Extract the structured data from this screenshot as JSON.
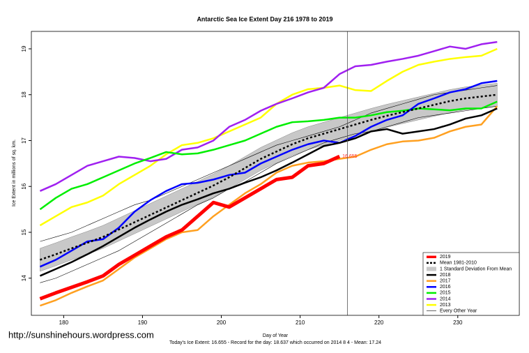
{
  "chart_data": {
    "type": "line",
    "title": "Antarctic Sea Ice Extent Day 216 1978 to 2019",
    "ylabel": "Ice Extent in millions of sq. km.",
    "xlabel": "Day of Year",
    "footer": "Today's Ice Extent: 16.655  - Record for the day: 18.637 which occurred on 2014 8 4  - Mean: 17.24",
    "watermark": "http://sunshinehours.wordpress.com",
    "annotation": "16.655",
    "vline": 216,
    "xlim": [
      175.9,
      237.8
    ],
    "ylim": [
      13.19,
      19.38
    ],
    "xticks": [
      180,
      190,
      200,
      210,
      220,
      230
    ],
    "yticks": [
      14,
      15,
      16,
      17,
      18,
      19
    ],
    "legend": "bottom-right",
    "x": [
      177,
      179,
      181,
      183,
      185,
      187,
      189,
      191,
      193,
      195,
      197,
      199,
      201,
      203,
      205,
      207,
      209,
      211,
      213,
      215,
      217,
      219,
      221,
      223,
      225,
      227,
      229,
      231,
      233,
      235
    ],
    "std_band": {
      "name": "1 Standard Deviation From Mean",
      "color": "#c8c8c8",
      "upper": [
        14.65,
        14.77,
        14.9,
        15.02,
        15.15,
        15.31,
        15.47,
        15.63,
        15.79,
        15.95,
        16.11,
        16.27,
        16.45,
        16.65,
        16.85,
        17.01,
        17.17,
        17.3,
        17.4,
        17.5,
        17.6,
        17.7,
        17.79,
        17.87,
        17.95,
        18.03,
        18.11,
        18.17,
        18.21,
        18.25
      ],
      "lower": [
        14.15,
        14.27,
        14.4,
        14.52,
        14.65,
        14.81,
        14.97,
        15.13,
        15.29,
        15.45,
        15.61,
        15.77,
        15.95,
        16.15,
        16.35,
        16.51,
        16.67,
        16.8,
        16.9,
        17.0,
        17.1,
        17.2,
        17.29,
        17.37,
        17.45,
        17.53,
        17.61,
        17.67,
        17.71,
        17.75
      ]
    },
    "other_years": {
      "name": "Every Other Year",
      "color": "#000000",
      "lines": [
        [
          14.8,
          14.9,
          15.0,
          15.15,
          15.3,
          15.45,
          15.6,
          15.7,
          15.85,
          16.0,
          16.15,
          16.3,
          16.45,
          16.6,
          16.75,
          16.9,
          17.0,
          17.1,
          17.2,
          17.3,
          17.45,
          17.6,
          17.7,
          17.8,
          17.9,
          18.0,
          18.05,
          18.1,
          18.15,
          18.2
        ],
        [
          13.9,
          14.0,
          14.15,
          14.3,
          14.45,
          14.6,
          14.8,
          15.0,
          15.2,
          15.4,
          15.6,
          15.75,
          15.95,
          16.1,
          16.3,
          16.5,
          16.65,
          16.8,
          16.95,
          17.05,
          17.15,
          17.2,
          17.3,
          17.4,
          17.5,
          17.55,
          17.6,
          17.65,
          17.7,
          17.75
        ]
      ]
    },
    "series": [
      {
        "name": "2019",
        "color": "#ff0000",
        "width": 5,
        "values": [
          13.55,
          13.68,
          13.8,
          13.92,
          14.05,
          14.3,
          14.5,
          14.7,
          14.9,
          15.05,
          15.35,
          15.65,
          15.55,
          15.75,
          15.95,
          16.15,
          16.2,
          16.45,
          16.5,
          16.655,
          null,
          null,
          null,
          null,
          null,
          null,
          null,
          null,
          null,
          null
        ]
      },
      {
        "name": "Mean 1981-2010",
        "color": "#000000",
        "width": 2.5,
        "dashed": true,
        "values": [
          14.4,
          14.52,
          14.65,
          14.77,
          14.9,
          15.06,
          15.22,
          15.38,
          15.54,
          15.7,
          15.86,
          16.02,
          16.2,
          16.4,
          16.6,
          16.76,
          16.92,
          17.05,
          17.15,
          17.25,
          17.35,
          17.45,
          17.54,
          17.62,
          17.7,
          17.78,
          17.86,
          17.92,
          17.96,
          18.0
        ]
      },
      {
        "name": "2018",
        "color": "#000000",
        "width": 2.5,
        "values": [
          14.05,
          14.2,
          14.35,
          14.52,
          14.7,
          14.9,
          15.1,
          15.28,
          15.45,
          15.6,
          15.72,
          15.85,
          15.95,
          16.08,
          16.2,
          16.35,
          16.52,
          16.7,
          16.88,
          16.95,
          17.05,
          17.2,
          17.25,
          17.15,
          17.2,
          17.25,
          17.35,
          17.48,
          17.55,
          17.7
        ]
      },
      {
        "name": "2017",
        "color": "#ffa020",
        "width": 2.5,
        "values": [
          13.4,
          13.52,
          13.68,
          13.82,
          13.95,
          14.2,
          14.45,
          14.65,
          14.85,
          15.0,
          15.05,
          15.35,
          15.6,
          15.85,
          16.05,
          16.3,
          16.45,
          16.52,
          16.55,
          16.6,
          16.65,
          16.8,
          16.92,
          16.98,
          17.0,
          17.06,
          17.2,
          17.3,
          17.35,
          17.75
        ]
      },
      {
        "name": "2016",
        "color": "#0000ff",
        "width": 2.5,
        "values": [
          14.25,
          14.4,
          14.6,
          14.8,
          14.85,
          15.1,
          15.45,
          15.7,
          15.9,
          16.05,
          16.08,
          16.15,
          16.25,
          16.3,
          16.5,
          16.65,
          16.8,
          16.92,
          17.0,
          16.95,
          17.1,
          17.3,
          17.45,
          17.55,
          17.8,
          17.92,
          18.05,
          18.12,
          18.25,
          18.3
        ]
      },
      {
        "name": "2015",
        "color": "#00ee00",
        "width": 2.5,
        "values": [
          15.5,
          15.75,
          15.95,
          16.05,
          16.2,
          16.35,
          16.5,
          16.62,
          16.75,
          16.7,
          16.72,
          16.8,
          16.9,
          17.0,
          17.15,
          17.3,
          17.4,
          17.42,
          17.45,
          17.5,
          17.5,
          17.55,
          17.62,
          17.65,
          17.7,
          17.68,
          17.66,
          17.7,
          17.7,
          17.85
        ]
      },
      {
        "name": "2014",
        "color": "#a020f0",
        "width": 2.5,
        "values": [
          15.9,
          16.05,
          16.25,
          16.45,
          16.55,
          16.65,
          16.62,
          16.55,
          16.6,
          16.8,
          16.85,
          17.0,
          17.3,
          17.45,
          17.65,
          17.8,
          17.92,
          18.05,
          18.15,
          18.45,
          18.62,
          18.65,
          18.72,
          18.78,
          18.85,
          18.95,
          19.05,
          19.0,
          19.1,
          19.15
        ]
      },
      {
        "name": "2013",
        "color": "#ffff00",
        "width": 2.5,
        "values": [
          15.15,
          15.35,
          15.55,
          15.65,
          15.8,
          16.05,
          16.25,
          16.45,
          16.7,
          16.9,
          16.95,
          17.05,
          17.2,
          17.35,
          17.5,
          17.8,
          18.0,
          18.12,
          18.15,
          18.2,
          18.1,
          18.08,
          18.3,
          18.5,
          18.65,
          18.72,
          18.78,
          18.82,
          18.85,
          19.0
        ]
      }
    ]
  }
}
